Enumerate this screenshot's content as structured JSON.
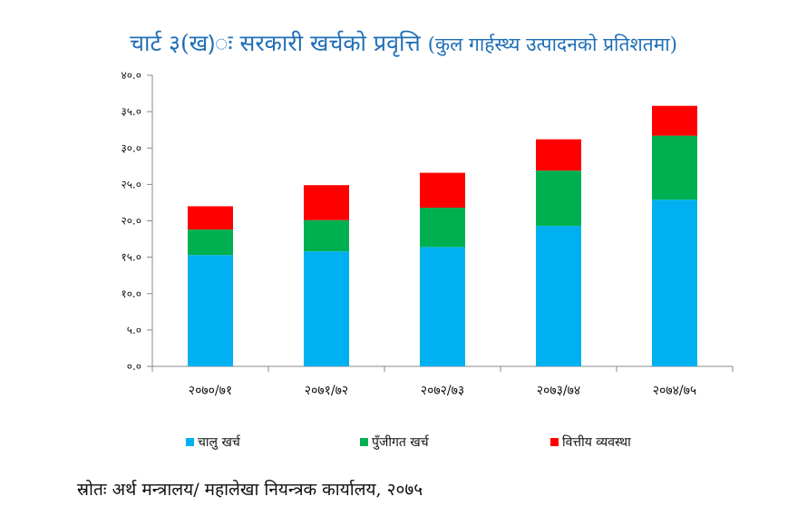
{
  "title": {
    "main": "चार्ट ३(ख)ः सरकारी खर्चको प्रवृत्ति",
    "sub": "(कुल गार्हस्थ्य उत्पादनको प्रतिशतमा)"
  },
  "source": "स्रोतः अर्थ मन्त्रालय/ महालेखा नियन्त्रक कार्यालय, २०७५",
  "chart_data": {
    "type": "bar",
    "stacked": true,
    "title": "चार्ट ३(ख)ः सरकारी खर्चको प्रवृत्ति (कुल गार्हस्थ्य उत्पादनको प्रतिशतमा)",
    "categories": [
      "२०७०/७१",
      "२०७१/७२",
      "२०७२/७३",
      "२०७३/७४",
      "२०७४/७५"
    ],
    "series": [
      {
        "name": "चालु खर्च",
        "color": "#00b0f0",
        "values": [
          15.3,
          15.8,
          16.4,
          19.3,
          22.9
        ]
      },
      {
        "name": "पुँजीगत खर्च",
        "color": "#00b050",
        "values": [
          3.5,
          4.3,
          5.4,
          7.6,
          8.8
        ]
      },
      {
        "name": "वित्तीय व्यवस्था",
        "color": "#ff0000",
        "values": [
          3.2,
          4.8,
          4.8,
          4.3,
          4.1
        ]
      }
    ],
    "y_ticks": [
      "०.०",
      "५.०",
      "१०.०",
      "१५.०",
      "२०.०",
      "२५.०",
      "३०.०",
      "३५.०",
      "४०.०"
    ],
    "ylim": [
      0,
      40
    ],
    "grid": false,
    "legend_position": "bottom"
  }
}
